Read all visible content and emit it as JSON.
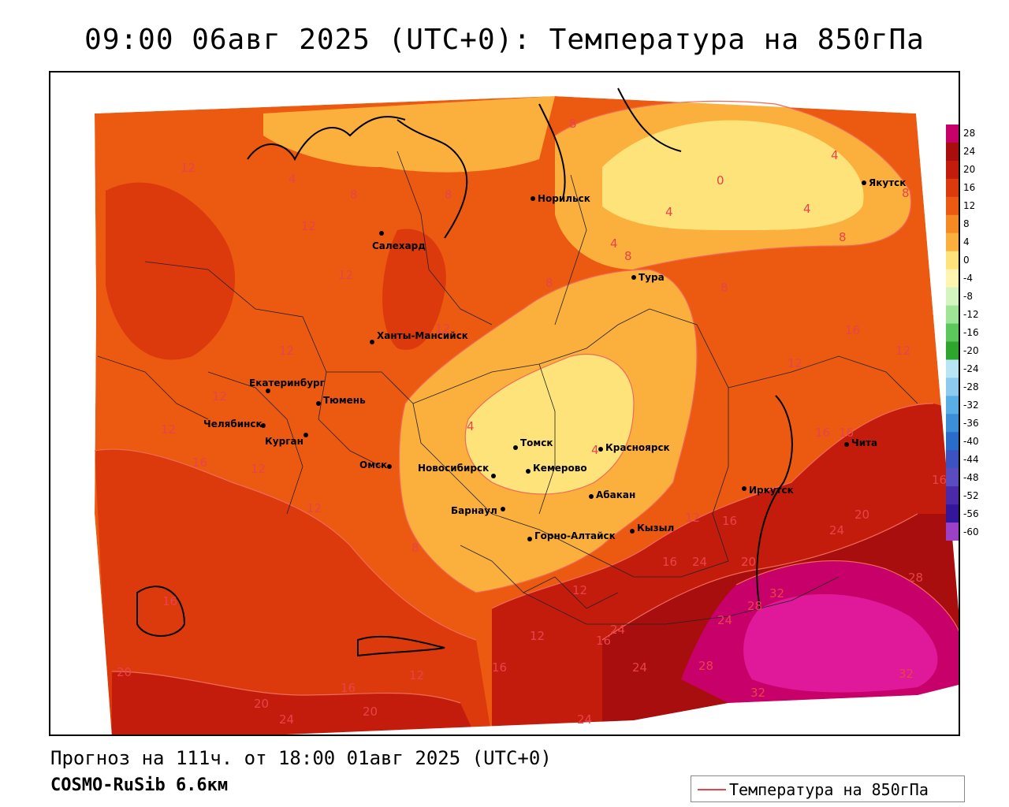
{
  "title": "09:00 06авг 2025 (UTC+0): Температура на 850гПа",
  "footer": {
    "forecast": "Прогноз на 111ч. от 18:00 01авг 2025 (UTC+0)",
    "model": "COSMO-RuSib 6.6км"
  },
  "legend": {
    "label": "Температура на 850гПа",
    "line_color": "#e8434a"
  },
  "colorbar": {
    "ticks": [
      "28",
      "24",
      "20",
      "16",
      "12",
      "8",
      "4",
      "0",
      "-4",
      "-8",
      "-12",
      "-16",
      "-20",
      "-24",
      "-28",
      "-32",
      "-36",
      "-40",
      "-44",
      "-48",
      "-52",
      "-56",
      "-60"
    ],
    "colors": [
      "#c8006a",
      "#a80e0e",
      "#c41c0c",
      "#dc3a0c",
      "#ec5a12",
      "#f68a22",
      "#fbb03e",
      "#fde37a",
      "#fff4b0",
      "#d4f5c0",
      "#9fe596",
      "#5cc85c",
      "#2ea62e",
      "#b8e4f6",
      "#8ccaf0",
      "#5aaee6",
      "#3a8fd8",
      "#2a6ccc",
      "#3c52c0",
      "#5a4cc0",
      "#4a2aa8",
      "#34169a",
      "#9d40c8"
    ]
  },
  "cities": [
    {
      "name": "Норильск"
    },
    {
      "name": "Салехард"
    },
    {
      "name": "Тура"
    },
    {
      "name": "Якутск"
    },
    {
      "name": "Ханты-Мансийск"
    },
    {
      "name": "Екатеринбург"
    },
    {
      "name": "Тюмень"
    },
    {
      "name": "Челябинск"
    },
    {
      "name": "Курган"
    },
    {
      "name": "Омск"
    },
    {
      "name": "Томск"
    },
    {
      "name": "Красноярск"
    },
    {
      "name": "Новосибирск"
    },
    {
      "name": "Кемерово"
    },
    {
      "name": "Абакан"
    },
    {
      "name": "Барнаул"
    },
    {
      "name": "Горно-Алтайск"
    },
    {
      "name": "Кызыл"
    },
    {
      "name": "Иркутск"
    },
    {
      "name": "Чита"
    }
  ],
  "contour_labels": [
    "12",
    "4",
    "8",
    "8",
    "8",
    "4",
    "0",
    "4",
    "4",
    "8",
    "12",
    "8",
    "4",
    "8",
    "8",
    "12",
    "12",
    "12",
    "12",
    "16",
    "12",
    "12",
    "8",
    "4",
    "4",
    "16",
    "16",
    "16",
    "12",
    "16",
    "12",
    "12",
    "12",
    "16",
    "20",
    "24",
    "20",
    "16",
    "24",
    "20",
    "28",
    "8",
    "12",
    "32",
    "28",
    "16",
    "24",
    "12",
    "24",
    "16",
    "24",
    "28",
    "32",
    "20",
    "16",
    "12",
    "16",
    "20",
    "20",
    "24",
    "24",
    "32"
  ]
}
